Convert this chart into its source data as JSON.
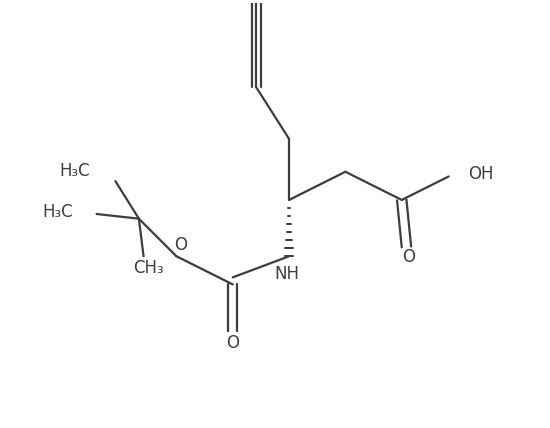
{
  "bg_color": "#ffffff",
  "line_color": "#3d3d3d",
  "line_width": 1.6,
  "font_size": 12,
  "fig_width": 5.5,
  "fig_height": 4.28,
  "dpi": 100,
  "xlim": [
    0,
    11
  ],
  "ylim": [
    0,
    9
  ]
}
